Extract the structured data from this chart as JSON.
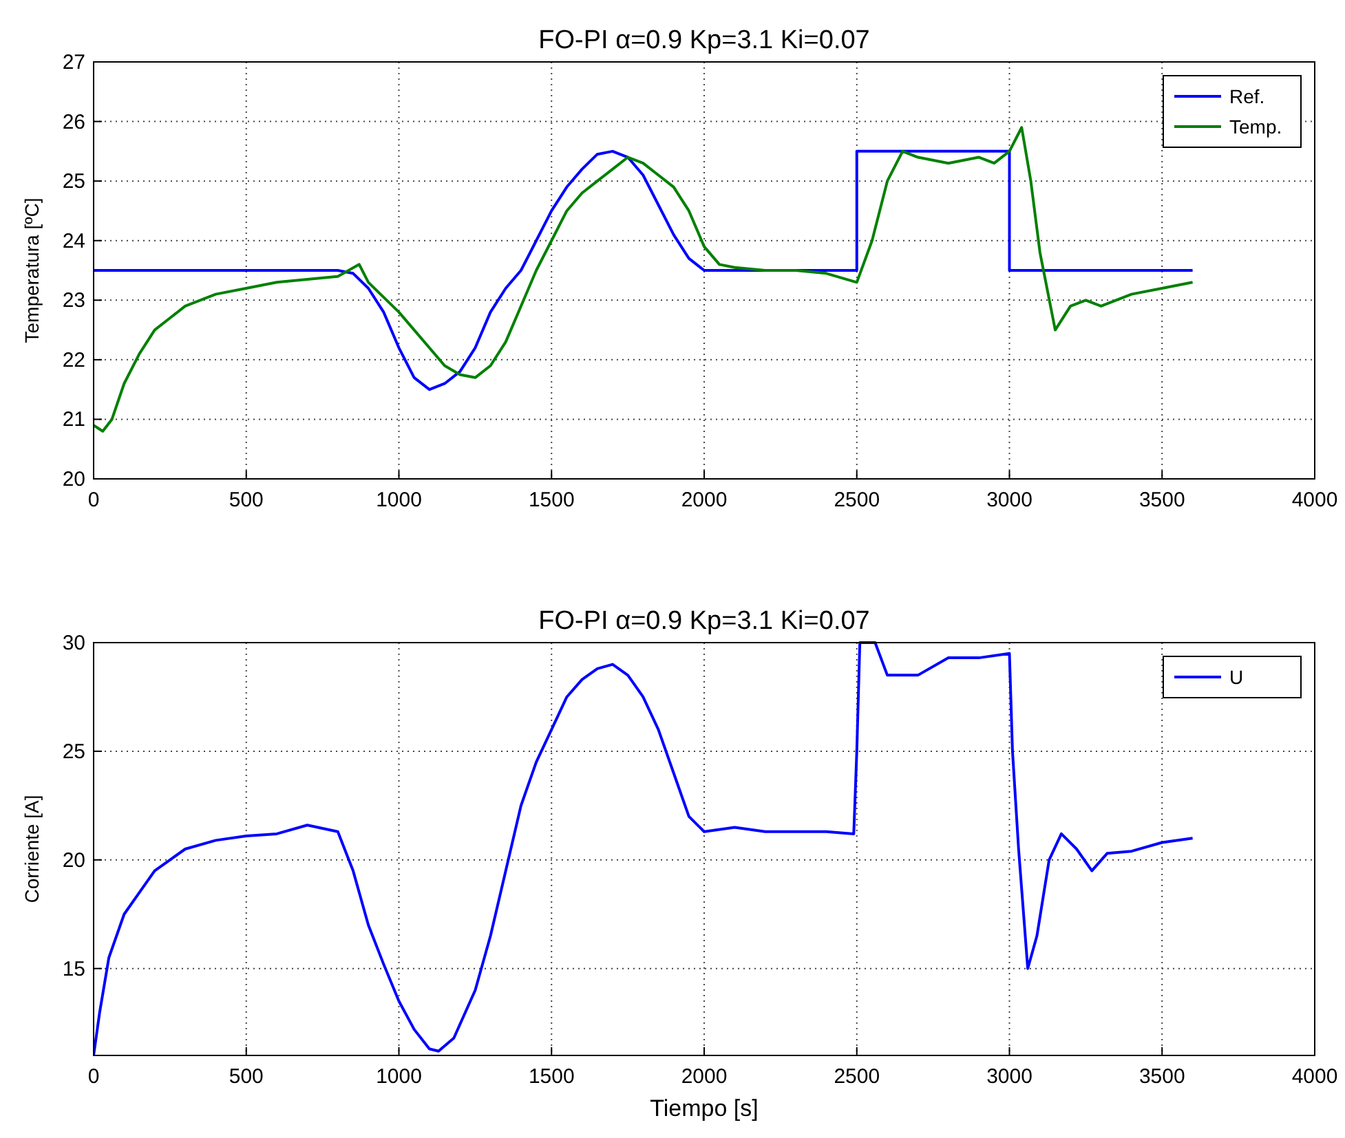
{
  "chart_data": [
    {
      "type": "line",
      "title": "FO-PI α=0.9 Kp=3.1  Ki=0.07",
      "ylabel": "Temperatura [ºC]",
      "xlim": [
        0,
        4000
      ],
      "xticks": [
        0,
        500,
        1000,
        1500,
        2000,
        2500,
        3000,
        3500,
        4000
      ],
      "ylim": [
        20,
        27
      ],
      "yticks": [
        20,
        21,
        22,
        23,
        24,
        25,
        26,
        27
      ],
      "grid": true,
      "legend": "top right",
      "line_style": "solid",
      "series": [
        {
          "name": "Ref.",
          "color": "#0000ff",
          "x": [
            0,
            800,
            850,
            900,
            950,
            1000,
            1050,
            1100,
            1150,
            1200,
            1250,
            1300,
            1350,
            1400,
            1450,
            1500,
            1550,
            1600,
            1650,
            1700,
            1750,
            1800,
            1850,
            1900,
            1950,
            2000,
            2500,
            2500,
            3000,
            3000,
            3600
          ],
          "values": [
            23.5,
            23.5,
            23.45,
            23.2,
            22.8,
            22.2,
            21.7,
            21.5,
            21.6,
            21.8,
            22.2,
            22.8,
            23.2,
            23.5,
            24,
            24.5,
            24.9,
            25.2,
            25.45,
            25.5,
            25.4,
            25.1,
            24.6,
            24.1,
            23.7,
            23.5,
            23.5,
            25.5,
            25.5,
            23.5,
            23.5
          ]
        },
        {
          "name": "Temp.",
          "color": "#008000",
          "x": [
            0,
            30,
            60,
            100,
            150,
            200,
            250,
            300,
            400,
            500,
            600,
            700,
            800,
            870,
            900,
            1000,
            1100,
            1150,
            1200,
            1250,
            1300,
            1350,
            1400,
            1450,
            1500,
            1550,
            1600,
            1650,
            1700,
            1750,
            1800,
            1850,
            1900,
            1950,
            2000,
            2050,
            2100,
            2200,
            2300,
            2400,
            2500,
            2550,
            2600,
            2650,
            2700,
            2800,
            2900,
            2950,
            3000,
            3040,
            3070,
            3100,
            3150,
            3200,
            3250,
            3300,
            3400,
            3500,
            3600
          ],
          "values": [
            20.9,
            20.8,
            21,
            21.6,
            22.1,
            22.5,
            22.7,
            22.9,
            23.1,
            23.2,
            23.3,
            23.35,
            23.4,
            23.6,
            23.3,
            22.8,
            22.2,
            21.9,
            21.75,
            21.7,
            21.9,
            22.3,
            22.9,
            23.5,
            24,
            24.5,
            24.8,
            25,
            25.2,
            25.4,
            25.3,
            25.1,
            24.9,
            24.5,
            23.9,
            23.6,
            23.55,
            23.5,
            23.5,
            23.45,
            23.3,
            24,
            25,
            25.5,
            25.4,
            25.3,
            25.4,
            25.3,
            25.5,
            25.9,
            25,
            23.8,
            22.5,
            22.9,
            23,
            22.9,
            23.1,
            23.2,
            23.3
          ]
        }
      ]
    },
    {
      "type": "line",
      "title": "FO-PI α=0.9 Kp=3.1 Ki=0.07",
      "xlabel": "Tiempo [s]",
      "ylabel": "Corriente [A]",
      "xlim": [
        0,
        4000
      ],
      "xticks": [
        0,
        500,
        1000,
        1500,
        2000,
        2500,
        3000,
        3500,
        4000
      ],
      "ylim": [
        11,
        30
      ],
      "yticks": [
        15,
        20,
        25,
        30
      ],
      "grid": true,
      "legend": "top right",
      "line_style": "solid",
      "series": [
        {
          "name": "U",
          "color": "#0000ff",
          "x": [
            0,
            20,
            50,
            100,
            150,
            200,
            250,
            300,
            400,
            500,
            600,
            700,
            800,
            850,
            900,
            950,
            1000,
            1050,
            1100,
            1130,
            1180,
            1250,
            1300,
            1350,
            1400,
            1450,
            1500,
            1550,
            1600,
            1650,
            1700,
            1750,
            1800,
            1850,
            1900,
            1950,
            2000,
            2100,
            2200,
            2300,
            2400,
            2490,
            2500,
            2510,
            2560,
            2600,
            2700,
            2800,
            2900,
            3000,
            3010,
            3030,
            3060,
            3090,
            3130,
            3170,
            3220,
            3270,
            3320,
            3400,
            3500,
            3600
          ],
          "values": [
            11,
            13,
            15.5,
            17.5,
            18.5,
            19.5,
            20,
            20.5,
            20.9,
            21.1,
            21.2,
            21.6,
            21.3,
            19.5,
            17,
            15.2,
            13.5,
            12.2,
            11.3,
            11.2,
            11.8,
            14,
            16.5,
            19.5,
            22.5,
            24.5,
            26,
            27.5,
            28.3,
            28.8,
            29,
            28.5,
            27.5,
            26,
            24,
            22,
            21.3,
            21.5,
            21.3,
            21.3,
            21.3,
            21.2,
            25,
            30,
            30,
            28.5,
            28.5,
            29.3,
            29.3,
            29.5,
            25,
            20.5,
            15,
            16.5,
            20,
            21.2,
            20.5,
            19.5,
            20.3,
            20.4,
            20.8,
            21
          ]
        }
      ]
    }
  ]
}
